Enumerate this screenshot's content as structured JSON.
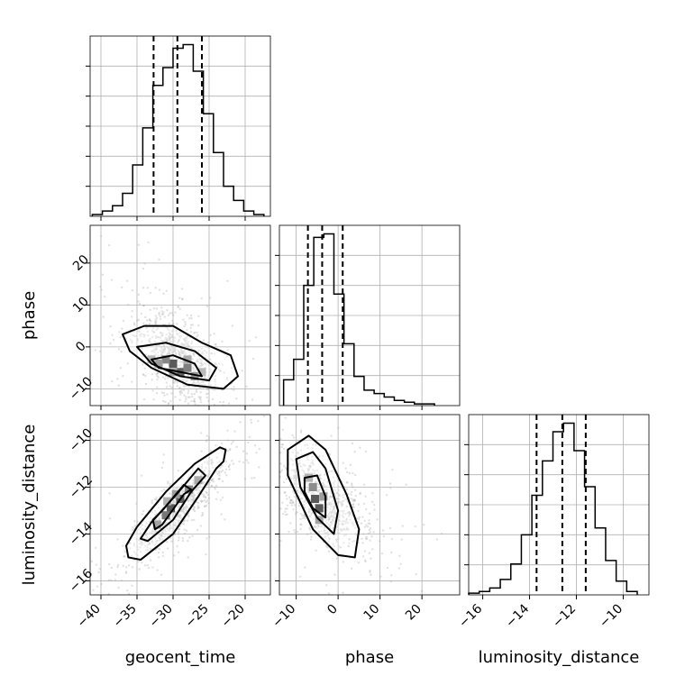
{
  "chart_data": {
    "type": "corner",
    "parameters": [
      "geocent_time",
      "phase",
      "luminosity_distance"
    ],
    "axis_labels": {
      "x": [
        "geocent_time",
        "phase",
        "luminosity_distance"
      ],
      "y": [
        "",
        "phase",
        "luminosity_distance"
      ]
    },
    "ranges": {
      "geocent_time": [
        -41.5,
        -16.5
      ],
      "phase": [
        -14,
        29
      ],
      "luminosity_distance": [
        -16.6,
        -8.9
      ]
    },
    "ticks": {
      "geocent_time": [
        -40,
        -35,
        -30,
        -25,
        -20
      ],
      "phase": [
        -10,
        0,
        10,
        20
      ],
      "luminosity_distance": [
        -16,
        -14,
        -12,
        -10
      ]
    },
    "tick_labels": {
      "geocent_time": [
        "−40",
        "−35",
        "−30",
        "−25",
        "−20"
      ],
      "phase": [
        "−10",
        "0",
        "10",
        "20"
      ],
      "luminosity_distance": [
        "−16",
        "−14",
        "−12",
        "−10"
      ]
    },
    "grid": true,
    "histograms": [
      {
        "parameter": "geocent_time",
        "bin_edges": [
          -41.2,
          -39.8,
          -38.4,
          -37.0,
          -35.6,
          -34.2,
          -32.8,
          -31.4,
          -30.0,
          -28.6,
          -27.2,
          -25.8,
          -24.4,
          -23.0,
          -21.6,
          -20.2,
          -18.8,
          -17.4
        ],
        "counts": [
          1,
          3,
          6,
          13,
          29,
          50,
          74,
          84,
          95,
          97,
          82,
          58,
          36,
          17,
          9,
          3,
          1
        ],
        "quantile_lines": [
          -32.7,
          -29.4,
          -26.0
        ]
      },
      {
        "parameter": "phase",
        "bin_edges": [
          -13.0,
          -10.6,
          -8.2,
          -5.8,
          -3.4,
          -1.0,
          1.4,
          3.8,
          6.2,
          8.6,
          11.0,
          13.4,
          15.8,
          18.2,
          20.6,
          23.0
        ],
        "counts": [
          15,
          27,
          70,
          98,
          100,
          65,
          36,
          17,
          9,
          7,
          5,
          3,
          2,
          1,
          1
        ],
        "quantile_lines": [
          -7.2,
          -3.8,
          1.1
        ]
      },
      {
        "parameter": "luminosity_distance",
        "bin_edges": [
          -16.6,
          -16.15,
          -15.7,
          -15.25,
          -14.8,
          -14.35,
          -13.9,
          -13.45,
          -13.0,
          -12.55,
          -12.1,
          -11.65,
          -11.2,
          -10.75,
          -10.3,
          -9.85,
          -9.4
        ],
        "counts": [
          1,
          2,
          4,
          9,
          18,
          35,
          58,
          78,
          95,
          100,
          84,
          63,
          39,
          20,
          8,
          2
        ],
        "quantile_lines": [
          -13.7,
          -12.6,
          -11.6
        ]
      }
    ],
    "density_panels": [
      {
        "x": "geocent_time",
        "y": "phase",
        "correlation": "negative",
        "scatter_center": [
          -29.5,
          -2.5
        ],
        "contour_levels": [
          [
            [
              -37,
              3
            ],
            [
              -34,
              5
            ],
            [
              -30,
              5
            ],
            [
              -26,
              1
            ],
            [
              -22,
              -2
            ],
            [
              -21,
              -7
            ],
            [
              -23,
              -10
            ],
            [
              -28,
              -9
            ],
            [
              -33,
              -5
            ],
            [
              -36,
              -1
            ]
          ],
          [
            [
              -35,
              0
            ],
            [
              -31,
              1
            ],
            [
              -27,
              -1
            ],
            [
              -24,
              -5
            ],
            [
              -25,
              -8
            ],
            [
              -29,
              -7
            ],
            [
              -33,
              -4
            ]
          ],
          [
            [
              -33,
              -3
            ],
            [
              -30,
              -2
            ],
            [
              -27,
              -4
            ],
            [
              -26,
              -7
            ],
            [
              -29,
              -6
            ],
            [
              -32,
              -5
            ]
          ]
        ],
        "dense_bins": [
          [
            -30,
            -4,
            1.0
          ],
          [
            -29,
            -6,
            0.95
          ],
          [
            -31,
            -3,
            0.7
          ],
          [
            -28,
            -5,
            0.75
          ],
          [
            -27,
            -7,
            0.6
          ],
          [
            -32,
            -4,
            0.55
          ],
          [
            -30,
            -6,
            0.55
          ],
          [
            -28,
            -3,
            0.45
          ],
          [
            -33,
            -3,
            0.35
          ],
          [
            -26,
            -6,
            0.35
          ]
        ]
      },
      {
        "x": "geocent_time",
        "y": "luminosity_distance",
        "correlation": "positive",
        "scatter_center": [
          -29.0,
          -12.8
        ],
        "contour_levels": [
          [
            [
              -36.5,
              -14.5
            ],
            [
              -36.2,
              -15.0
            ],
            [
              -34.5,
              -15.1
            ],
            [
              -30,
              -14.0
            ],
            [
              -26.5,
              -12.4
            ],
            [
              -24,
              -11.2
            ],
            [
              -23,
              -10.9
            ],
            [
              -22.7,
              -10.4
            ],
            [
              -23.5,
              -10.3
            ],
            [
              -27,
              -11.0
            ],
            [
              -31,
              -12.2
            ],
            [
              -35,
              -13.7
            ]
          ],
          [
            [
              -34.5,
              -14.2
            ],
            [
              -33.5,
              -14.3
            ],
            [
              -30,
              -13.4
            ],
            [
              -27.5,
              -12.2
            ],
            [
              -25.5,
              -11.5
            ],
            [
              -26.5,
              -11.2
            ],
            [
              -29.5,
              -12.3
            ],
            [
              -33,
              -13.5
            ]
          ],
          [
            [
              -32.5,
              -13.8
            ],
            [
              -31.5,
              -13.6
            ],
            [
              -28.5,
              -12.3
            ],
            [
              -27.5,
              -12.1
            ],
            [
              -28.5,
              -11.9
            ],
            [
              -31.5,
              -13.0
            ],
            [
              -32.8,
              -13.4
            ]
          ]
        ],
        "dense_bins": [
          [
            -30.3,
            -12.9,
            1.0
          ],
          [
            -29.0,
            -12.5,
            1.0
          ],
          [
            -31.0,
            -13.2,
            0.8
          ],
          [
            -27.8,
            -12.1,
            0.7
          ],
          [
            -32.2,
            -13.6,
            0.5
          ],
          [
            -26.5,
            -11.7,
            0.45
          ],
          [
            -29.6,
            -12.3,
            0.55
          ],
          [
            -30.8,
            -12.6,
            0.4
          ]
        ]
      },
      {
        "x": "phase",
        "y": "luminosity_distance",
        "correlation": "negative",
        "scatter_center": [
          -3.5,
          -12.6
        ],
        "contour_levels": [
          [
            [
              -12,
              -10.4
            ],
            [
              -7,
              -9.8
            ],
            [
              -3,
              -10.4
            ],
            [
              2,
              -12.3
            ],
            [
              5,
              -13.8
            ],
            [
              4,
              -15.0
            ],
            [
              0,
              -14.9
            ],
            [
              -6,
              -13.8
            ],
            [
              -12,
              -11.5
            ]
          ],
          [
            [
              -10,
              -10.8
            ],
            [
              -6,
              -10.5
            ],
            [
              -3,
              -11.2
            ],
            [
              0,
              -13.0
            ],
            [
              -1,
              -14.0
            ],
            [
              -5,
              -13.3
            ],
            [
              -9,
              -12.0
            ]
          ],
          [
            [
              -8,
              -11.6
            ],
            [
              -5,
              -11.5
            ],
            [
              -3,
              -12.4
            ],
            [
              -3,
              -13.3
            ],
            [
              -6,
              -12.9
            ],
            [
              -8,
              -12.2
            ]
          ]
        ],
        "dense_bins": [
          [
            -5.5,
            -12.5,
            1.0
          ],
          [
            -4.5,
            -12.9,
            1.0
          ],
          [
            -6.0,
            -12.0,
            0.65
          ],
          [
            -3.5,
            -12.4,
            0.55
          ],
          [
            -4.5,
            -13.4,
            0.5
          ],
          [
            -7.0,
            -11.6,
            0.4
          ]
        ]
      }
    ]
  }
}
